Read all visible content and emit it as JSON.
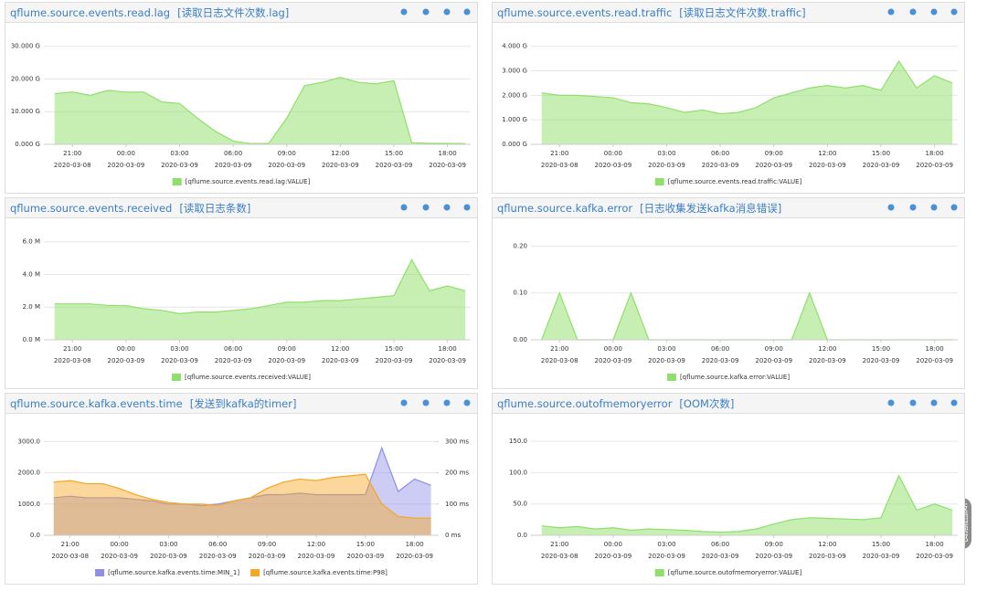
{
  "chart_data": [
    {
      "type": "area",
      "title": "qflume.source.events.read.lag",
      "subtitle": "[读取日志文件次数.lag]",
      "x": [
        20,
        21,
        22,
        23,
        24,
        25,
        26,
        27,
        28,
        29,
        30,
        31,
        32,
        33,
        34,
        35,
        36,
        37,
        38,
        39,
        40,
        41,
        42,
        43
      ],
      "xlim": [
        19.4,
        43.3
      ],
      "xticks": [
        {
          "value": 21,
          "label": "21:00"
        },
        {
          "value": 24,
          "label": "00:00"
        },
        {
          "value": 27,
          "label": "03:00"
        },
        {
          "value": 30,
          "label": "06:00"
        },
        {
          "value": 33,
          "label": "09:00"
        },
        {
          "value": 36,
          "label": "12:00"
        },
        {
          "value": 39,
          "label": "15:00"
        },
        {
          "value": 42,
          "label": "18:00"
        }
      ],
      "xtick_sublabels": [
        "2020-03-08",
        "2020-03-09",
        "2020-03-09",
        "2020-03-09",
        "2020-03-09",
        "2020-03-09",
        "2020-03-09",
        "2020-03-09"
      ],
      "ylim": [
        0,
        33
      ],
      "yticks": [
        {
          "value": 0,
          "label": "0.000 G"
        },
        {
          "value": 10,
          "label": "10.000 G"
        },
        {
          "value": 20,
          "label": "20.000 G"
        },
        {
          "value": 30,
          "label": "30.000 G"
        }
      ],
      "series": [
        {
          "name": "[qflume.source.events.read.lag:VALUE]",
          "color": "#8fe06a",
          "values": [
            15.5,
            16,
            15,
            16.5,
            16,
            16,
            13,
            12.5,
            8,
            4,
            1,
            0.2,
            0.3,
            8,
            18,
            19,
            20.5,
            19,
            18.5,
            19.5,
            0.5,
            0.3,
            0.3,
            0.2
          ]
        }
      ]
    },
    {
      "type": "area",
      "title": "qflume.source.events.read.traffic",
      "subtitle": "[读取日志文件次数.traffic]",
      "x": [
        20,
        21,
        22,
        23,
        24,
        25,
        26,
        27,
        28,
        29,
        30,
        31,
        32,
        33,
        34,
        35,
        36,
        37,
        38,
        39,
        40,
        41,
        42,
        43
      ],
      "xlim": [
        19.4,
        43.3
      ],
      "xticks": [
        {
          "value": 21,
          "label": "21:00"
        },
        {
          "value": 24,
          "label": "00:00"
        },
        {
          "value": 27,
          "label": "03:00"
        },
        {
          "value": 30,
          "label": "06:00"
        },
        {
          "value": 33,
          "label": "09:00"
        },
        {
          "value": 36,
          "label": "12:00"
        },
        {
          "value": 39,
          "label": "15:00"
        },
        {
          "value": 42,
          "label": "18:00"
        }
      ],
      "xtick_sublabels": [
        "2020-03-08",
        "2020-03-09",
        "2020-03-09",
        "2020-03-09",
        "2020-03-09",
        "2020-03-09",
        "2020-03-09",
        "2020-03-09"
      ],
      "ylim": [
        0,
        4.4
      ],
      "yticks": [
        {
          "value": 0,
          "label": "0.000 G"
        },
        {
          "value": 1,
          "label": "1.000 G"
        },
        {
          "value": 2,
          "label": "2.000 G"
        },
        {
          "value": 3,
          "label": "3.000 G"
        },
        {
          "value": 4,
          "label": "4.000 G"
        }
      ],
      "series": [
        {
          "name": "[qflume.source.events.read.traffic:VALUE]",
          "color": "#8fe06a",
          "values": [
            2.1,
            2.0,
            2.0,
            1.95,
            1.9,
            1.7,
            1.65,
            1.5,
            1.3,
            1.4,
            1.25,
            1.3,
            1.5,
            1.9,
            2.1,
            2.3,
            2.4,
            2.3,
            2.4,
            2.2,
            3.4,
            2.3,
            2.8,
            2.5
          ]
        }
      ]
    },
    {
      "type": "area",
      "title": "qflume.source.events.received",
      "subtitle": "[读取日志条数]",
      "x": [
        20,
        21,
        22,
        23,
        24,
        25,
        26,
        27,
        28,
        29,
        30,
        31,
        32,
        33,
        34,
        35,
        36,
        37,
        38,
        39,
        40,
        41,
        42,
        43
      ],
      "xlim": [
        19.4,
        43.3
      ],
      "xticks": [
        {
          "value": 21,
          "label": "21:00"
        },
        {
          "value": 24,
          "label": "00:00"
        },
        {
          "value": 27,
          "label": "03:00"
        },
        {
          "value": 30,
          "label": "06:00"
        },
        {
          "value": 33,
          "label": "09:00"
        },
        {
          "value": 36,
          "label": "12:00"
        },
        {
          "value": 39,
          "label": "15:00"
        },
        {
          "value": 42,
          "label": "18:00"
        }
      ],
      "xtick_sublabels": [
        "2020-03-08",
        "2020-03-09",
        "2020-03-09",
        "2020-03-09",
        "2020-03-09",
        "2020-03-09",
        "2020-03-09",
        "2020-03-09"
      ],
      "ylim": [
        0,
        6.6
      ],
      "yticks": [
        {
          "value": 0,
          "label": "0.0 M"
        },
        {
          "value": 2,
          "label": "2.0 M"
        },
        {
          "value": 4,
          "label": "4.0 M"
        },
        {
          "value": 6,
          "label": "6.0 M"
        }
      ],
      "series": [
        {
          "name": "[qflume.source.events.received:VALUE]",
          "color": "#8fe06a",
          "values": [
            2.2,
            2.2,
            2.2,
            2.1,
            2.1,
            1.9,
            1.8,
            1.6,
            1.7,
            1.7,
            1.8,
            1.9,
            2.1,
            2.3,
            2.3,
            2.4,
            2.4,
            2.5,
            2.6,
            2.7,
            4.9,
            3.0,
            3.3,
            3.0
          ]
        }
      ]
    },
    {
      "type": "area",
      "title": "qflume.source.kafka.error",
      "subtitle": "[日志收集发送kafka消息错误]",
      "x": [
        20,
        21,
        22,
        23,
        24,
        25,
        26,
        27,
        28,
        29,
        30,
        31,
        32,
        33,
        34,
        35,
        36,
        37,
        38,
        39,
        40,
        41,
        42,
        43
      ],
      "xlim": [
        19.4,
        43.3
      ],
      "xticks": [
        {
          "value": 21,
          "label": "21:00"
        },
        {
          "value": 24,
          "label": "00:00"
        },
        {
          "value": 27,
          "label": "03:00"
        },
        {
          "value": 30,
          "label": "06:00"
        },
        {
          "value": 33,
          "label": "09:00"
        },
        {
          "value": 36,
          "label": "12:00"
        },
        {
          "value": 39,
          "label": "15:00"
        },
        {
          "value": 42,
          "label": "18:00"
        }
      ],
      "xtick_sublabels": [
        "2020-03-08",
        "2020-03-09",
        "2020-03-09",
        "2020-03-09",
        "2020-03-09",
        "2020-03-09",
        "2020-03-09",
        "2020-03-09"
      ],
      "ylim": [
        0,
        0.23
      ],
      "yticks": [
        {
          "value": 0,
          "label": "0.00"
        },
        {
          "value": 0.1,
          "label": "0.10"
        },
        {
          "value": 0.2,
          "label": "0.20"
        }
      ],
      "series": [
        {
          "name": "[qflume.source.kafka.error:VALUE]",
          "color": "#8fe06a",
          "values": [
            0,
            0.1,
            0,
            0,
            0,
            0.1,
            0,
            0,
            0,
            0,
            0,
            0,
            0,
            0,
            0,
            0.1,
            0,
            0,
            0,
            0,
            0,
            0,
            0,
            0
          ]
        }
      ]
    },
    {
      "type": "area",
      "title": "qflume.source.kafka.events.time",
      "subtitle": "[发送到kafka的timer]",
      "x": [
        20,
        21,
        22,
        23,
        24,
        25,
        26,
        27,
        28,
        29,
        30,
        31,
        32,
        33,
        34,
        35,
        36,
        37,
        38,
        39,
        40,
        41,
        42,
        43
      ],
      "xlim": [
        19.4,
        43.3
      ],
      "xticks": [
        {
          "value": 21,
          "label": "21:00"
        },
        {
          "value": 24,
          "label": "00:00"
        },
        {
          "value": 27,
          "label": "03:00"
        },
        {
          "value": 30,
          "label": "06:00"
        },
        {
          "value": 33,
          "label": "09:00"
        },
        {
          "value": 36,
          "label": "12:00"
        },
        {
          "value": 39,
          "label": "15:00"
        },
        {
          "value": 42,
          "label": "18:00"
        }
      ],
      "xtick_sublabels": [
        "2020-03-08",
        "2020-03-09",
        "2020-03-09",
        "2020-03-09",
        "2020-03-09",
        "2020-03-09",
        "2020-03-09",
        "2020-03-09"
      ],
      "ylim": [
        0,
        3450
      ],
      "yticks": [
        {
          "value": 0,
          "label": "0.0"
        },
        {
          "value": 1000,
          "label": "1000.0"
        },
        {
          "value": 2000,
          "label": "2000.0"
        },
        {
          "value": 3000,
          "label": "3000.0"
        }
      ],
      "y2lim": [
        0,
        345
      ],
      "y2ticks": [
        {
          "value": 0,
          "label": "0 ms"
        },
        {
          "value": 100,
          "label": "100 ms"
        },
        {
          "value": 200,
          "label": "200 ms"
        },
        {
          "value": 300,
          "label": "300 ms"
        }
      ],
      "series": [
        {
          "name": "[qflume.source.kafka.events.time:MIN_1]",
          "color": "#8f8fe8",
          "values": [
            1200,
            1250,
            1200,
            1200,
            1200,
            1150,
            1100,
            1000,
            1000,
            950,
            1000,
            1100,
            1200,
            1300,
            1300,
            1350,
            1300,
            1300,
            1300,
            1300,
            2800,
            1400,
            1800,
            1600
          ]
        },
        {
          "name": "[qflume.source.kafka.events.time:P98]",
          "color": "#f6a623",
          "axis": "y2",
          "values": [
            170,
            175,
            165,
            165,
            150,
            130,
            115,
            105,
            100,
            100,
            95,
            110,
            120,
            150,
            170,
            180,
            175,
            185,
            190,
            195,
            100,
            60,
            55,
            55
          ]
        }
      ]
    },
    {
      "type": "area",
      "title": "qflume.source.outofmemoryerror",
      "subtitle": "[OOM次数]",
      "x": [
        20,
        21,
        22,
        23,
        24,
        25,
        26,
        27,
        28,
        29,
        30,
        31,
        32,
        33,
        34,
        35,
        36,
        37,
        38,
        39,
        40,
        41,
        42,
        43
      ],
      "xlim": [
        19.4,
        43.3
      ],
      "xticks": [
        {
          "value": 21,
          "label": "21:00"
        },
        {
          "value": 24,
          "label": "00:00"
        },
        {
          "value": 27,
          "label": "03:00"
        },
        {
          "value": 30,
          "label": "06:00"
        },
        {
          "value": 33,
          "label": "09:00"
        },
        {
          "value": 36,
          "label": "12:00"
        },
        {
          "value": 39,
          "label": "15:00"
        },
        {
          "value": 42,
          "label": "18:00"
        }
      ],
      "xtick_sublabels": [
        "2020-03-08",
        "2020-03-09",
        "2020-03-09",
        "2020-03-09",
        "2020-03-09",
        "2020-03-09",
        "2020-03-09",
        "2020-03-09"
      ],
      "ylim": [
        0,
        172
      ],
      "yticks": [
        {
          "value": 0,
          "label": "0.0"
        },
        {
          "value": 50,
          "label": "50.0"
        },
        {
          "value": 100,
          "label": "100.0"
        },
        {
          "value": 150,
          "label": "150.0"
        }
      ],
      "series": [
        {
          "name": "[qflume.source.outofmemoryerror:VALUE]",
          "color": "#8fe06a",
          "values": [
            15,
            12,
            14,
            10,
            12,
            8,
            10,
            9,
            8,
            6,
            5,
            6,
            10,
            18,
            25,
            28,
            27,
            26,
            25,
            28,
            95,
            40,
            50,
            40
          ]
        }
      ]
    }
  ],
  "back_to_top": "返回顶部"
}
